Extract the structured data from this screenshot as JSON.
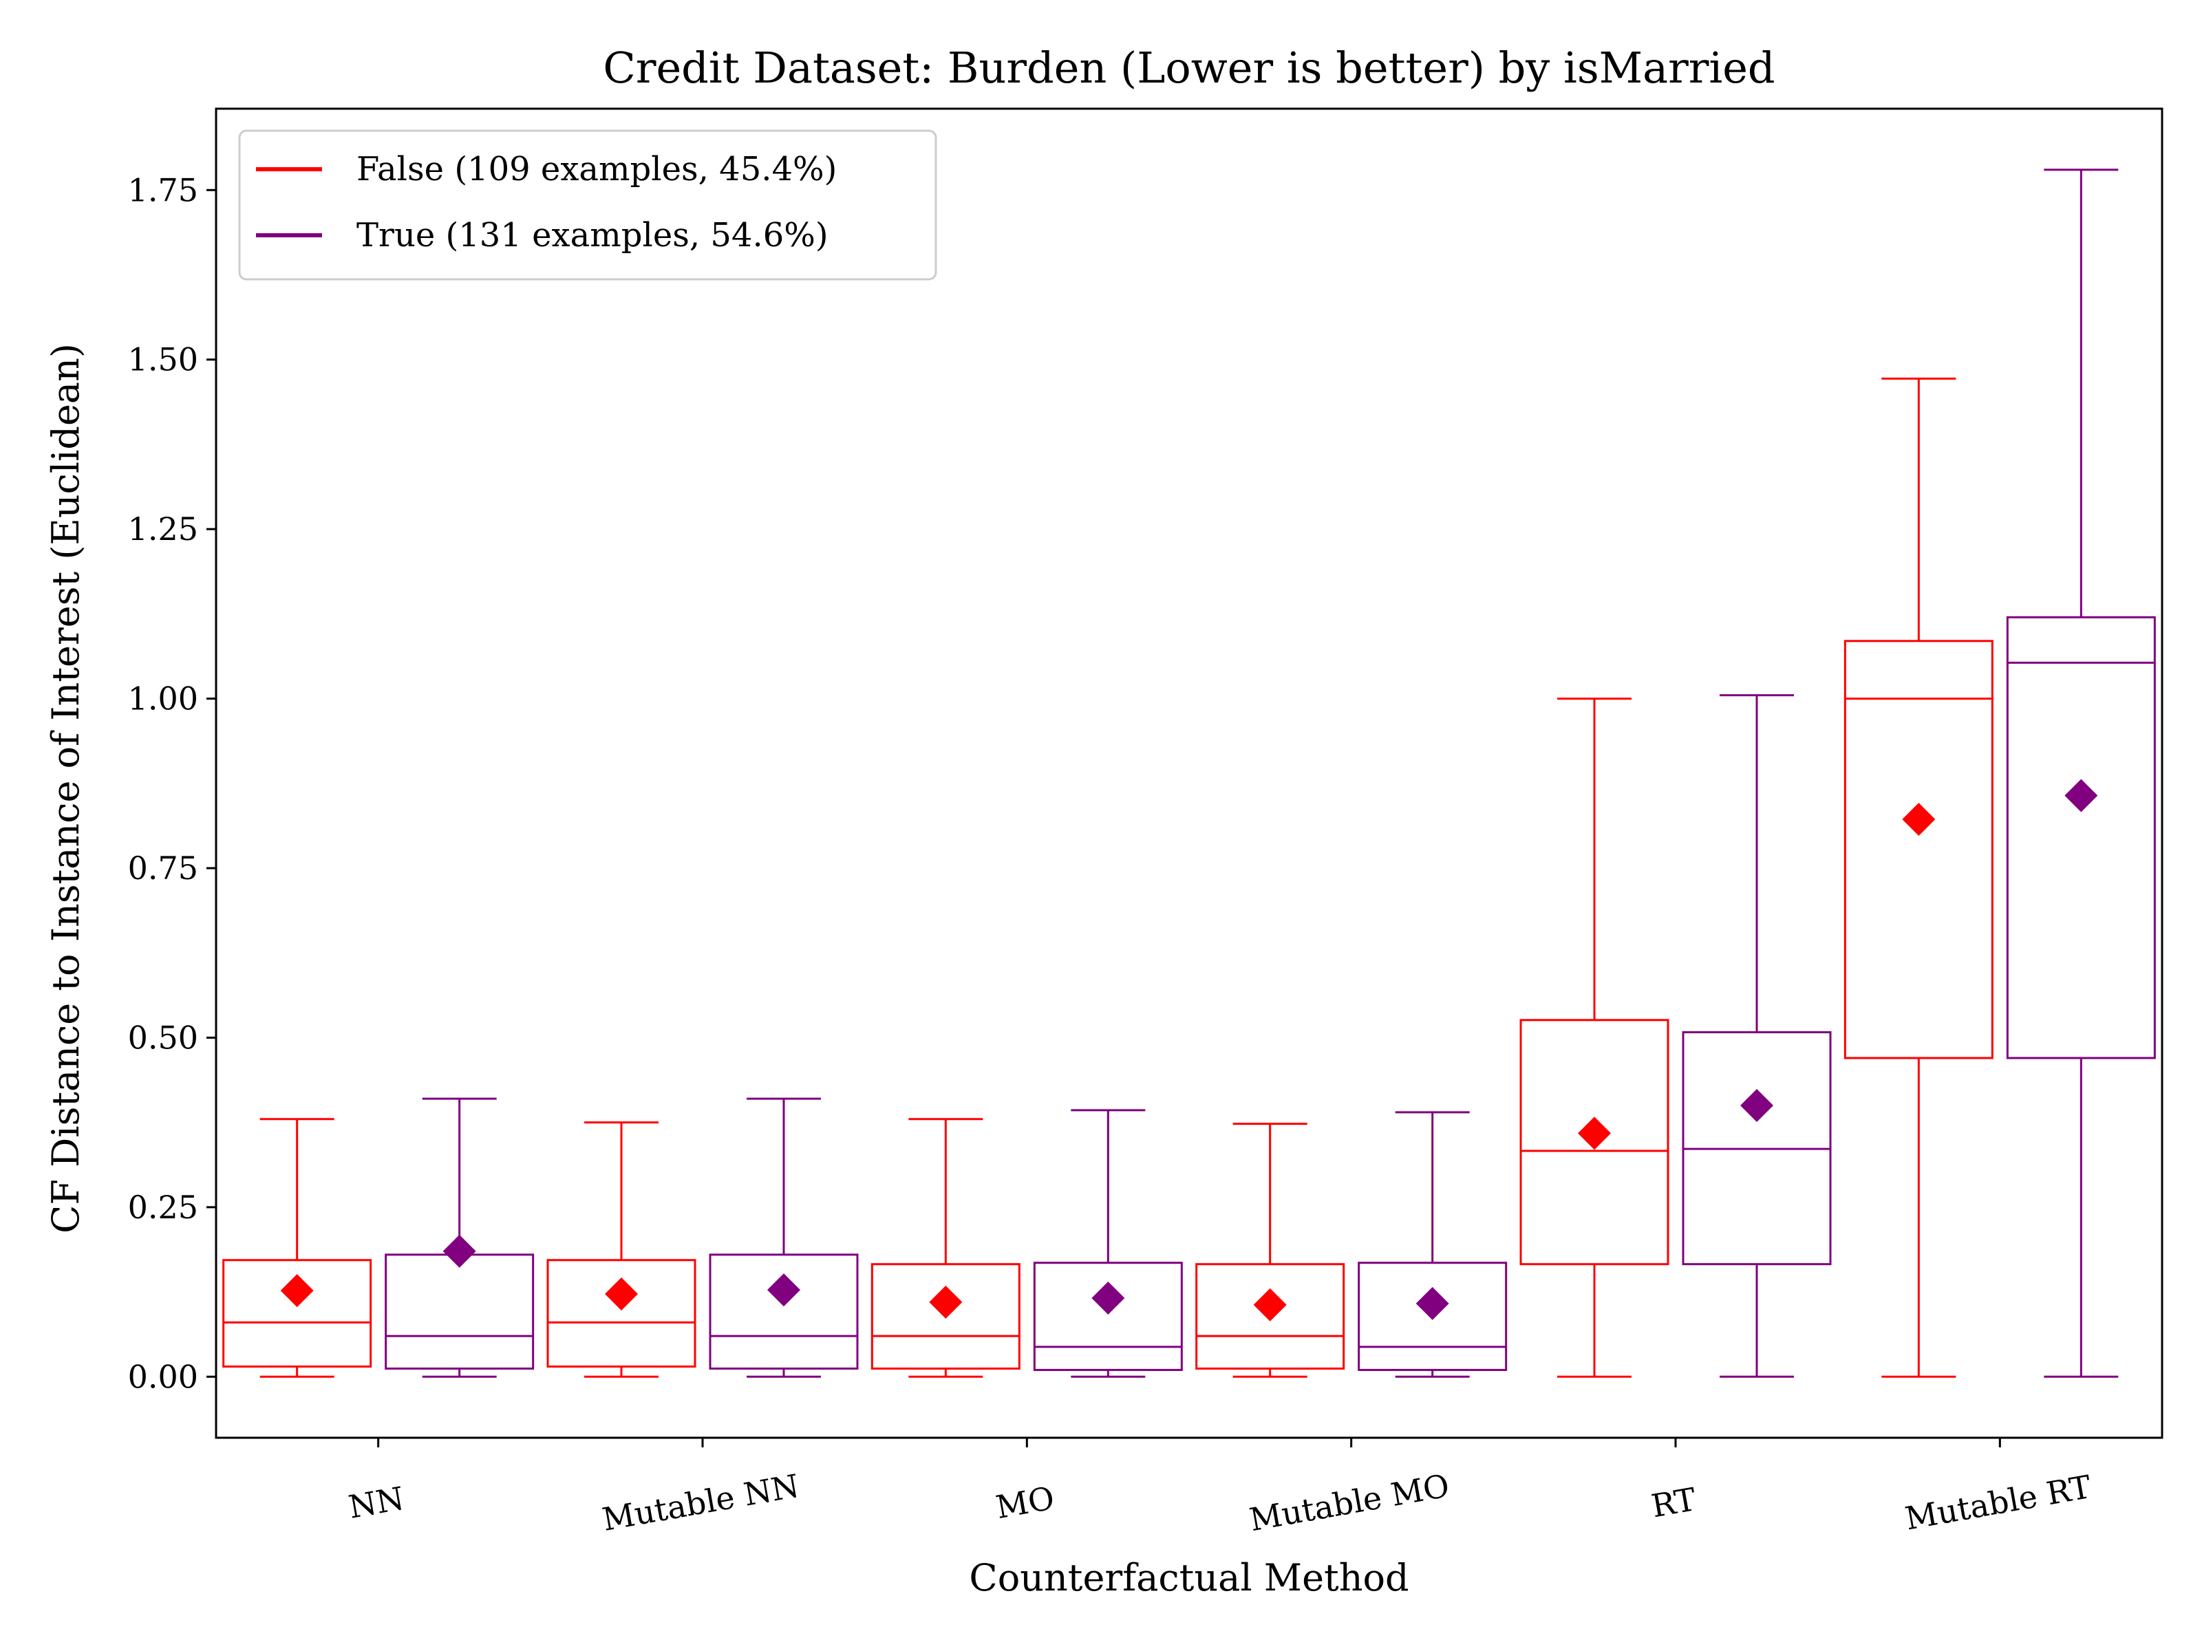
{
  "chart_data": {
    "type": "box",
    "title": "Credit Dataset: Burden (Lower is better) by isMarried",
    "xlabel": "Counterfactual Method",
    "ylabel": "CF Distance to Instance of Interest (Euclidean)",
    "ylim": [
      -0.09,
      1.87
    ],
    "yticks": [
      "0.00",
      "0.25",
      "0.50",
      "0.75",
      "1.00",
      "1.25",
      "1.50",
      "1.75"
    ],
    "categories": [
      "NN",
      "Mutable NN",
      "MO",
      "Mutable MO",
      "RT",
      "Mutable RT"
    ],
    "grid": false,
    "legend_position": "top-left",
    "series": [
      {
        "name": "False (109 examples, 45.4%)",
        "color": "#ff0000",
        "boxes": [
          {
            "min": 0.0,
            "q1": 0.015,
            "median": 0.08,
            "q3": 0.172,
            "max": 0.38,
            "mean": 0.127
          },
          {
            "min": 0.0,
            "q1": 0.015,
            "median": 0.08,
            "q3": 0.172,
            "max": 0.375,
            "mean": 0.122
          },
          {
            "min": 0.0,
            "q1": 0.012,
            "median": 0.06,
            "q3": 0.166,
            "max": 0.38,
            "mean": 0.11
          },
          {
            "min": 0.0,
            "q1": 0.012,
            "median": 0.06,
            "q3": 0.166,
            "max": 0.373,
            "mean": 0.106
          },
          {
            "min": 0.0,
            "q1": 0.166,
            "median": 0.333,
            "q3": 0.526,
            "max": 1.0,
            "mean": 0.359
          },
          {
            "min": 0.0,
            "q1": 0.47,
            "median": 1.0,
            "q3": 1.085,
            "max": 1.472,
            "mean": 0.822
          }
        ]
      },
      {
        "name": "True (131 examples, 54.6%)",
        "color": "#800080",
        "boxes": [
          {
            "min": 0.0,
            "q1": 0.012,
            "median": 0.06,
            "q3": 0.18,
            "max": 0.41,
            "mean": 0.185
          },
          {
            "min": 0.0,
            "q1": 0.012,
            "median": 0.06,
            "q3": 0.18,
            "max": 0.41,
            "mean": 0.128
          },
          {
            "min": 0.0,
            "q1": 0.01,
            "median": 0.044,
            "q3": 0.168,
            "max": 0.393,
            "mean": 0.116
          },
          {
            "min": 0.0,
            "q1": 0.01,
            "median": 0.044,
            "q3": 0.168,
            "max": 0.39,
            "mean": 0.108
          },
          {
            "min": 0.0,
            "q1": 0.166,
            "median": 0.336,
            "q3": 0.508,
            "max": 1.005,
            "mean": 0.4
          },
          {
            "min": 0.0,
            "q1": 0.47,
            "median": 1.053,
            "q3": 1.12,
            "max": 1.78,
            "mean": 0.857
          }
        ]
      }
    ]
  }
}
